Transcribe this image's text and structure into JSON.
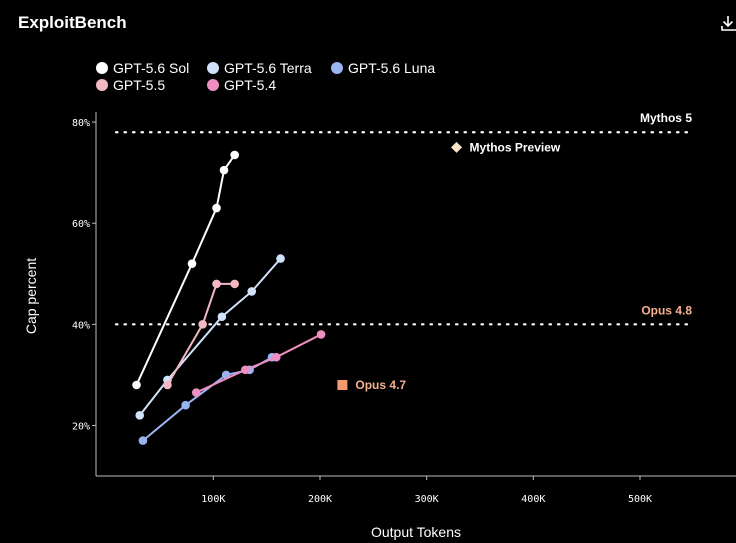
{
  "header": {
    "title": "ExploitBench",
    "download_icon": "download-icon"
  },
  "chart_data": {
    "type": "line",
    "title": "ExploitBench",
    "xlabel": "Output Tokens",
    "ylabel": "Cap percent",
    "xlim": [
      -10000,
      590000
    ],
    "ylim": [
      10,
      82
    ],
    "x_ticks": [
      100000,
      200000,
      300000,
      400000,
      500000
    ],
    "x_tick_labels": [
      "100K",
      "200K",
      "300K",
      "400K",
      "500K"
    ],
    "y_ticks": [
      20,
      40,
      60,
      80
    ],
    "y_tick_labels": [
      "20%",
      "40%",
      "60%",
      "80%"
    ],
    "grid": false,
    "legend_position": "top-left",
    "series": [
      {
        "name": "GPT-5.6 Sol",
        "color": "#ffffff",
        "points": [
          [
            28000,
            28
          ],
          [
            80000,
            52
          ],
          [
            103000,
            63
          ],
          [
            110000,
            70.5
          ],
          [
            120000,
            73.5
          ]
        ]
      },
      {
        "name": "GPT-5.6 Terra",
        "color": "#cfe2fa",
        "points": [
          [
            31000,
            22
          ],
          [
            57000,
            29
          ],
          [
            108000,
            41.5
          ],
          [
            136000,
            46.5
          ],
          [
            163000,
            53
          ]
        ]
      },
      {
        "name": "GPT-5.6 Luna",
        "color": "#9ab4f2",
        "points": [
          [
            34000,
            17
          ],
          [
            74000,
            24
          ],
          [
            112000,
            30
          ],
          [
            134000,
            31
          ],
          [
            155000,
            33.5
          ]
        ]
      },
      {
        "name": "GPT-5.5",
        "color": "#f4b8c2",
        "points": [
          [
            57000,
            28
          ],
          [
            90000,
            40
          ],
          [
            103000,
            48
          ],
          [
            120000,
            48
          ]
        ]
      },
      {
        "name": "GPT-5.4",
        "color": "#ee8fc2",
        "points": [
          [
            84000,
            26.5
          ],
          [
            130000,
            31
          ],
          [
            159000,
            33.5
          ],
          [
            201000,
            38
          ]
        ]
      }
    ],
    "reference_lines": [
      {
        "label": "Mythos 5",
        "y": 78,
        "color": "#ffffff"
      },
      {
        "label": "Opus 4.8",
        "y": 40,
        "color": "#f5b08f"
      }
    ],
    "annotations": [
      {
        "label": "Mythos Preview",
        "x": 328000,
        "y": 75,
        "marker": "diamond",
        "color": "#f7e6c8",
        "text_color": "#ffffff"
      },
      {
        "label": "Opus 4.7",
        "x": 221000,
        "y": 28,
        "marker": "square",
        "color": "#f59a6e",
        "text_color": "#f5b08f"
      }
    ]
  }
}
